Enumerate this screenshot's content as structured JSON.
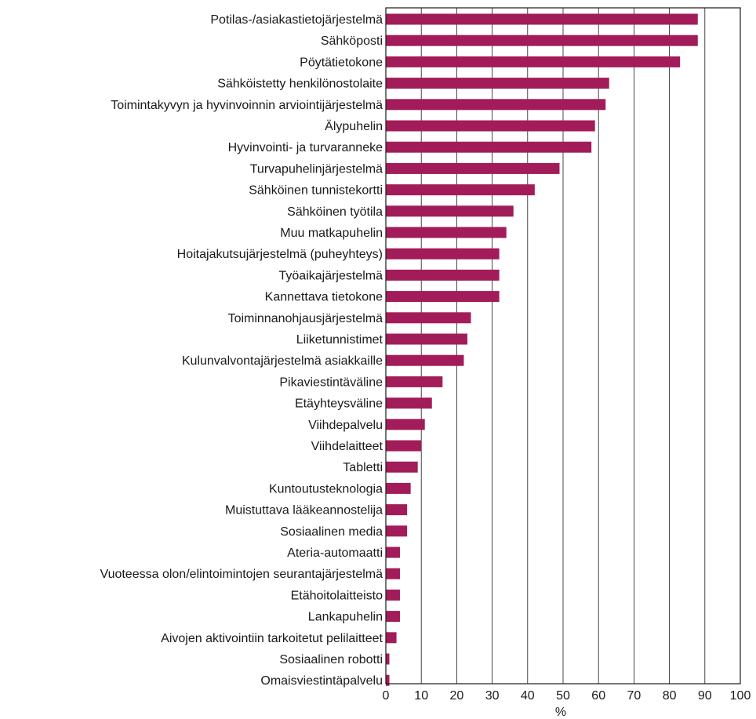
{
  "chart_data": {
    "type": "bar",
    "orientation": "horizontal",
    "title": "",
    "xlabel": "%",
    "ylabel": "",
    "xlim": [
      0,
      100
    ],
    "xticks": [
      0,
      10,
      20,
      30,
      40,
      50,
      60,
      70,
      80,
      90,
      100
    ],
    "grid": true,
    "bar_color": "#a21c5a",
    "categories": [
      "Potilas-/asiakastietojärjestelmä",
      "Sähköposti",
      "Pöytätietokone",
      "Sähköistetty henkilönostolaite",
      "Toimintakyvyn ja hyvinvoinnin arviointijärjestelmä",
      "Älypuhelin",
      "Hyvinvointi- ja turvaranneke",
      "Turvapuhelinjärjestelmä",
      "Sähköinen tunnistekortti",
      "Sähköinen työtila",
      "Muu matkapuhelin",
      "Hoitajakutsujärjestelmä (puheyhteys)",
      "Työaikajärjestelmä",
      "Kannettava tietokone",
      "Toiminnanohjausjärjestelmä",
      "Liiketunnistimet",
      "Kulunvalvontajärjestelmä asiakkaille",
      "Pikaviestintäväline",
      "Etäyhteysväline",
      "Viihdepalvelu",
      "Viihdelaitteet",
      "Tabletti",
      "Kuntoutusteknologia",
      "Muistuttava lääkeannostelija",
      "Sosiaalinen media",
      "Ateria-automaatti",
      "Vuoteessa olon/elintoimintojen seurantajärjestelmä",
      "Etähoitolaitteisto",
      "Lankapuhelin",
      "Aivojen aktivointiin tarkoitetut pelilaitteet",
      "Sosiaalinen robotti",
      "Omaisviestintäpalvelu"
    ],
    "values": [
      88,
      88,
      83,
      63,
      62,
      59,
      58,
      49,
      42,
      36,
      34,
      32,
      32,
      32,
      24,
      23,
      22,
      16,
      13,
      11,
      10,
      9,
      7,
      6,
      6,
      4,
      4,
      4,
      4,
      3,
      1,
      1
    ]
  }
}
